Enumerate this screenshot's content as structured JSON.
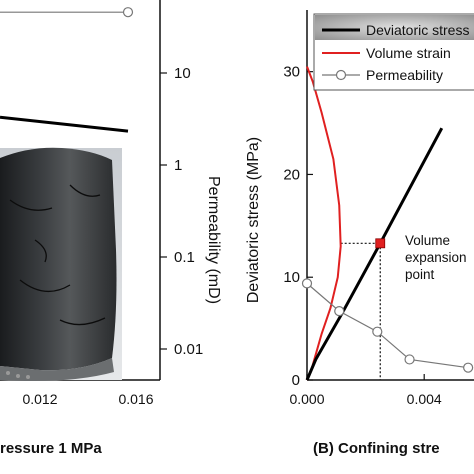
{
  "panels": {
    "a": {
      "caption": "ressure 1 MPa",
      "right_axis_label": "Permeability (mD)",
      "x_ticks": [
        "0.012",
        "0.016"
      ],
      "right_ticks": [
        "10",
        "1",
        "0.1",
        "0.01"
      ]
    },
    "b": {
      "caption": "(B)  Confining stre",
      "y_axis_label": "Deviatoric stress (MPa)",
      "x_ticks": [
        "0.000",
        "0.004"
      ],
      "y_ticks": [
        "0",
        "10",
        "20",
        "30"
      ],
      "legend": [
        "Deviatoric stress",
        "Volume strain",
        "Permeability"
      ],
      "annotation": [
        "Volume",
        "expansion",
        "point"
      ]
    }
  },
  "chart_data": [
    {
      "type": "line",
      "title": "",
      "xlabel": "",
      "ylabel_right": "Permeability (mD)",
      "xlim": [
        0.0085,
        0.016
      ],
      "ylim_right": [
        0.005,
        40
      ],
      "y_scale_right": "log",
      "series": [
        {
          "values_x": [
            0.0085,
            0.0145
          ],
          "values_y": [
            30,
            30
          ]
        },
        {
          "values_x": [
            0.0085,
            0.0145
          ],
          "values_y": [
            2.5,
            1.8
          ]
        }
      ],
      "colors": {
        "permeability": "#777777",
        "stress": "#000000"
      }
    },
    {
      "type": "line",
      "title": "",
      "xlabel": "",
      "ylabel": "Deviatoric stress (MPa)",
      "xlim": [
        0.0,
        0.0057
      ],
      "ylim": [
        0,
        36
      ],
      "series": [
        {
          "name": "Deviatoric stress",
          "color": "#000000",
          "x": [
            0.0,
            0.0003,
            0.0012,
            0.0025,
            0.0046
          ],
          "y": [
            0,
            2,
            6.5,
            13.3,
            24.5
          ]
        },
        {
          "name": "Volume strain",
          "color": "#e02020",
          "x": [
            0.0,
            0.0002,
            0.0005,
            0.0009,
            0.0011,
            0.00115,
            0.00105,
            0.0008,
            0.0005,
            0.0003,
            0.00015,
            0.0
          ],
          "y": [
            30.5,
            29,
            26,
            21.5,
            17,
            13,
            10,
            7,
            4.5,
            2.5,
            1,
            0
          ]
        },
        {
          "name": "Permeability",
          "color": "#777777",
          "x": [
            0.0,
            0.0011,
            0.0024,
            0.0035,
            0.0055
          ],
          "y": [
            9.4,
            6.7,
            4.7,
            2.0,
            1.2
          ]
        }
      ],
      "markers": {
        "volume_expansion_point": {
          "x": 0.0025,
          "y": 13.3,
          "color": "#e02020"
        }
      }
    }
  ]
}
